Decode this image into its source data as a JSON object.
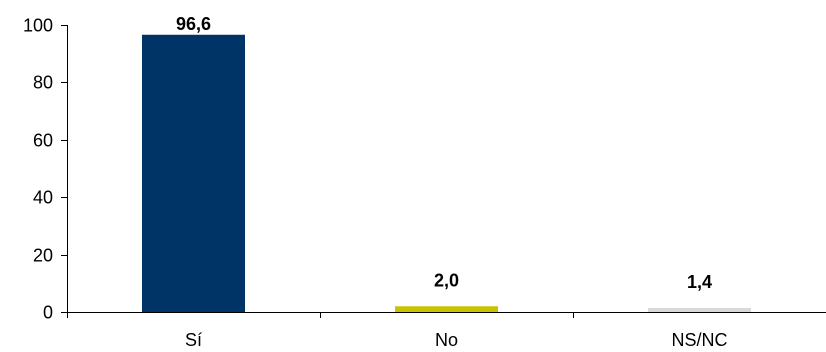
{
  "chart_data": {
    "type": "bar",
    "categories": [
      "Sí",
      "No",
      "NS/NC"
    ],
    "values": [
      96.6,
      2.0,
      1.4
    ],
    "data_labels": [
      "96,6",
      "2,0",
      "1,4"
    ],
    "colors": [
      "#003366",
      "#c8c200",
      "#d9d9d9"
    ],
    "y_ticks": [
      "0",
      "20",
      "40",
      "60",
      "80",
      "100"
    ],
    "ylim": [
      0,
      100
    ],
    "grid": false,
    "legend": "none",
    "title": "",
    "xlabel": "",
    "ylabel": ""
  }
}
